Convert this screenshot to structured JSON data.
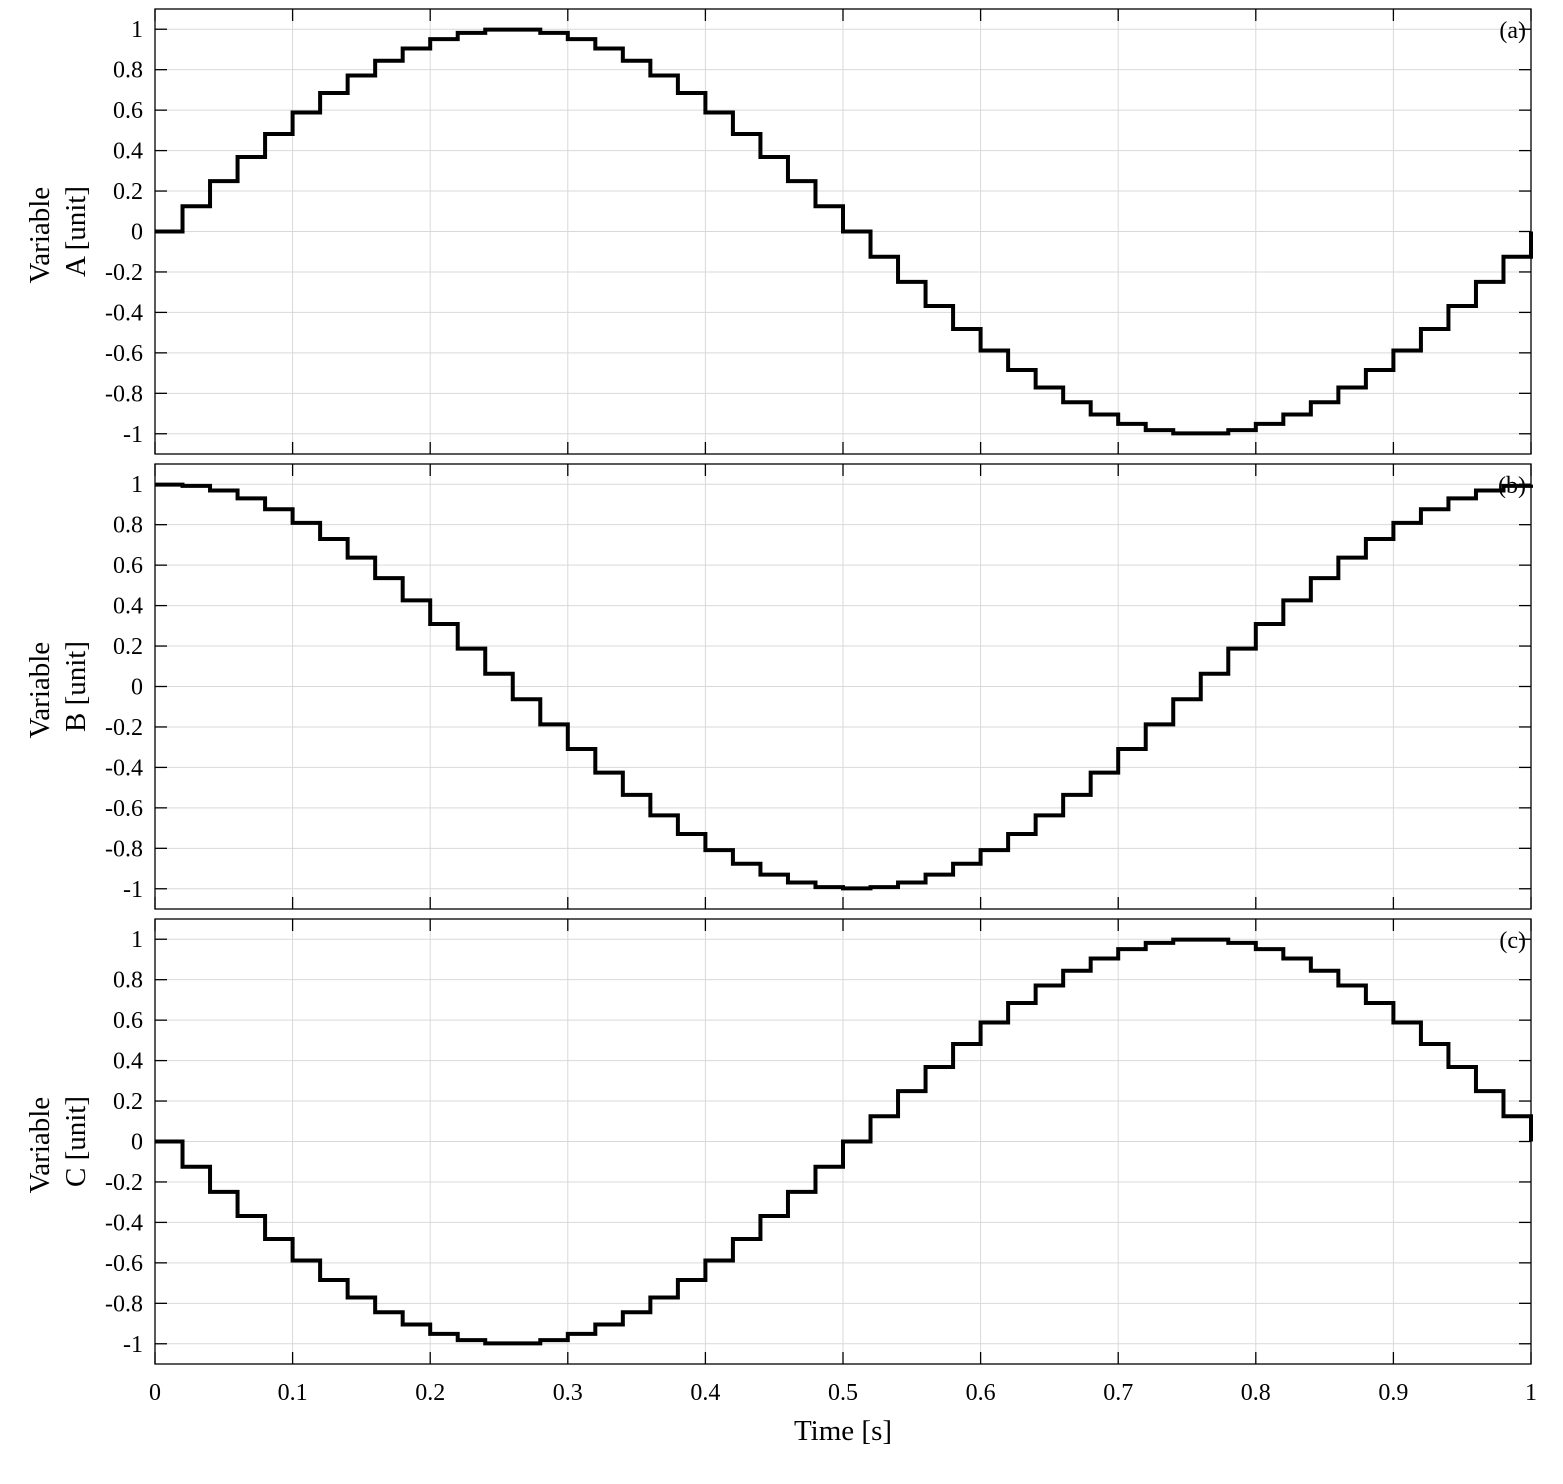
{
  "chart_data": {
    "type": "line",
    "step": true,
    "grid": true,
    "line_color": "#000000",
    "grid_color": "#d9d9d9",
    "x_range": [
      0,
      1
    ],
    "x_step": 0.02,
    "x_ticks": [
      0,
      0.1,
      0.2,
      0.3,
      0.4,
      0.5,
      0.6,
      0.7,
      0.8,
      0.9,
      1
    ],
    "x_tick_labels": [
      "0",
      "0.1",
      "0.2",
      "0.3",
      "0.4",
      "0.5",
      "0.6",
      "0.7",
      "0.8",
      "0.9",
      "1"
    ],
    "xlabel": "Time [s]",
    "y_ticks": [
      1,
      0.8,
      0.6,
      0.4,
      0.2,
      0,
      -0.2,
      -0.4,
      -0.6,
      -0.8,
      -1
    ],
    "y_tick_labels": [
      "1",
      "0.8",
      "0.6",
      "0.4",
      "0.2",
      "0",
      "-0.2",
      "-0.4",
      "-0.6",
      "-0.8",
      "-1"
    ],
    "panels": [
      {
        "panel_label": "(a)",
        "ylabel_line1": "Variable",
        "ylabel_line2": "A [unit]",
        "ylim": [
          -1.1,
          1.1
        ],
        "values": [
          0,
          0.125,
          0.249,
          0.368,
          0.482,
          0.588,
          0.685,
          0.771,
          0.844,
          0.905,
          0.951,
          0.982,
          0.998,
          0.998,
          0.982,
          0.951,
          0.905,
          0.844,
          0.771,
          0.685,
          0.588,
          0.482,
          0.368,
          0.249,
          0.125,
          0,
          -0.125,
          -0.249,
          -0.368,
          -0.482,
          -0.588,
          -0.685,
          -0.771,
          -0.844,
          -0.905,
          -0.951,
          -0.982,
          -0.998,
          -0.998,
          -0.982,
          -0.951,
          -0.905,
          -0.844,
          -0.771,
          -0.685,
          -0.588,
          -0.482,
          -0.368,
          -0.249,
          -0.125,
          0
        ]
      },
      {
        "panel_label": "(b)",
        "ylabel_line1": "Variable",
        "ylabel_line2": "B [unit]",
        "ylim": [
          -1.1,
          1.1
        ],
        "values": [
          0.998,
          0.992,
          0.969,
          0.93,
          0.876,
          0.809,
          0.729,
          0.637,
          0.536,
          0.426,
          0.309,
          0.187,
          0.063,
          -0.063,
          -0.187,
          -0.309,
          -0.426,
          -0.536,
          -0.637,
          -0.729,
          -0.809,
          -0.876,
          -0.93,
          -0.969,
          -0.992,
          -0.998,
          -0.992,
          -0.969,
          -0.93,
          -0.876,
          -0.809,
          -0.729,
          -0.637,
          -0.536,
          -0.426,
          -0.309,
          -0.187,
          -0.063,
          0.063,
          0.187,
          0.309,
          0.426,
          0.536,
          0.637,
          0.729,
          0.809,
          0.876,
          0.93,
          0.969,
          0.992,
          0.998
        ]
      },
      {
        "panel_label": "(c)",
        "ylabel_line1": "Variable",
        "ylabel_line2": "C [unit]",
        "ylim": [
          -1.1,
          1.1
        ],
        "values": [
          0,
          -0.125,
          -0.249,
          -0.368,
          -0.482,
          -0.588,
          -0.685,
          -0.771,
          -0.844,
          -0.905,
          -0.951,
          -0.982,
          -0.998,
          -0.998,
          -0.982,
          -0.951,
          -0.905,
          -0.844,
          -0.771,
          -0.685,
          -0.588,
          -0.482,
          -0.368,
          -0.249,
          -0.125,
          0,
          0.125,
          0.249,
          0.368,
          0.482,
          0.588,
          0.685,
          0.771,
          0.844,
          0.905,
          0.951,
          0.982,
          0.998,
          0.998,
          0.982,
          0.951,
          0.905,
          0.844,
          0.771,
          0.685,
          0.588,
          0.482,
          0.368,
          0.249,
          0.125,
          0
        ]
      }
    ]
  }
}
